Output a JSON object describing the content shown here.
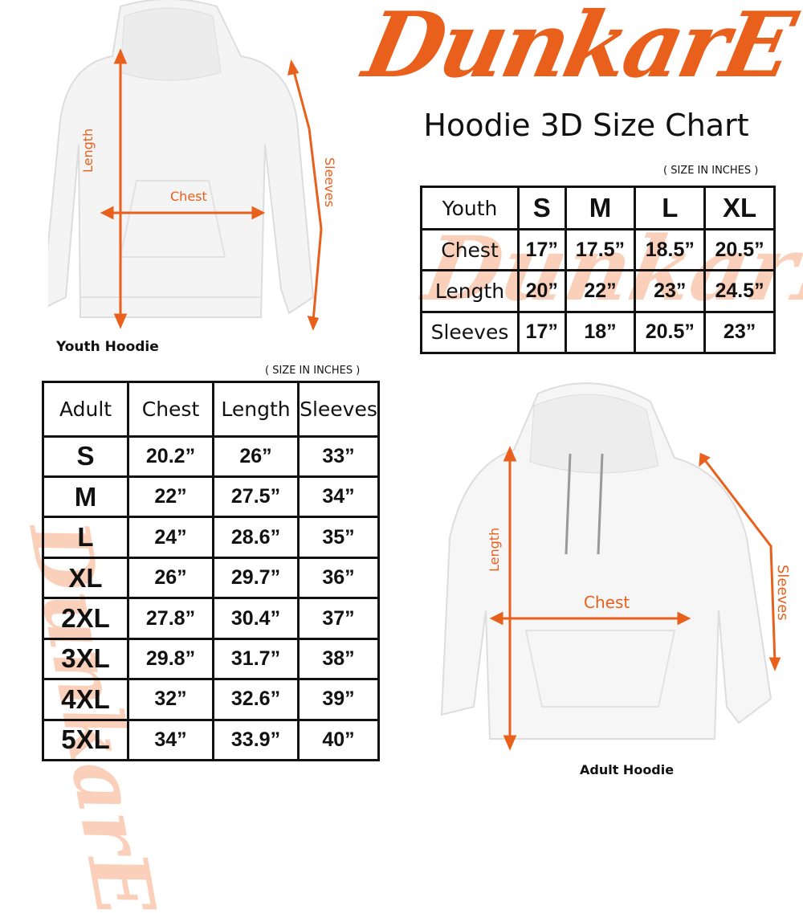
{
  "brand": {
    "logo_text": "DunkarE",
    "accent": "#e8601c"
  },
  "title": "Hoodie 3D Size Chart",
  "youth": {
    "unit_note": "( SIZE IN INCHES )",
    "caption": "Youth Hoodie",
    "image_labels": {
      "length": "Length",
      "chest": "Chest",
      "sleeves": "Sleeves"
    },
    "header": [
      "Youth",
      "S",
      "M",
      "L",
      "XL"
    ],
    "rows": [
      {
        "label": "Chest",
        "values": [
          "17”",
          "17.5”",
          "18.5”",
          "20.5”"
        ]
      },
      {
        "label": "Length",
        "values": [
          "20”",
          "22”",
          "23”",
          "24.5”"
        ]
      },
      {
        "label": "Sleeves",
        "values": [
          "17”",
          "18”",
          "20.5”",
          "23”"
        ]
      }
    ]
  },
  "adult": {
    "unit_note": "( SIZE IN INCHES )",
    "caption": "Adult Hoodie",
    "image_labels": {
      "length": "Length",
      "chest": "Chest",
      "sleeves": "Sleeves"
    },
    "header": [
      "Adult",
      "Chest",
      "Length",
      "Sleeves"
    ],
    "rows": [
      {
        "size": "S",
        "values": [
          "20.2”",
          "26”",
          "33”"
        ]
      },
      {
        "size": "M",
        "values": [
          "22”",
          "27.5”",
          "34”"
        ]
      },
      {
        "size": "L",
        "values": [
          "24”",
          "28.6”",
          "35”"
        ]
      },
      {
        "size": "XL",
        "values": [
          "26”",
          "29.7”",
          "36”"
        ]
      },
      {
        "size": "2XL",
        "values": [
          "27.8”",
          "30.4”",
          "37”"
        ]
      },
      {
        "size": "3XL",
        "values": [
          "29.8”",
          "31.7”",
          "38”"
        ]
      },
      {
        "size": "4XL",
        "values": [
          "32”",
          "32.6”",
          "39”"
        ]
      },
      {
        "size": "5XL",
        "values": [
          "34”",
          "33.9”",
          "40”"
        ]
      }
    ]
  }
}
